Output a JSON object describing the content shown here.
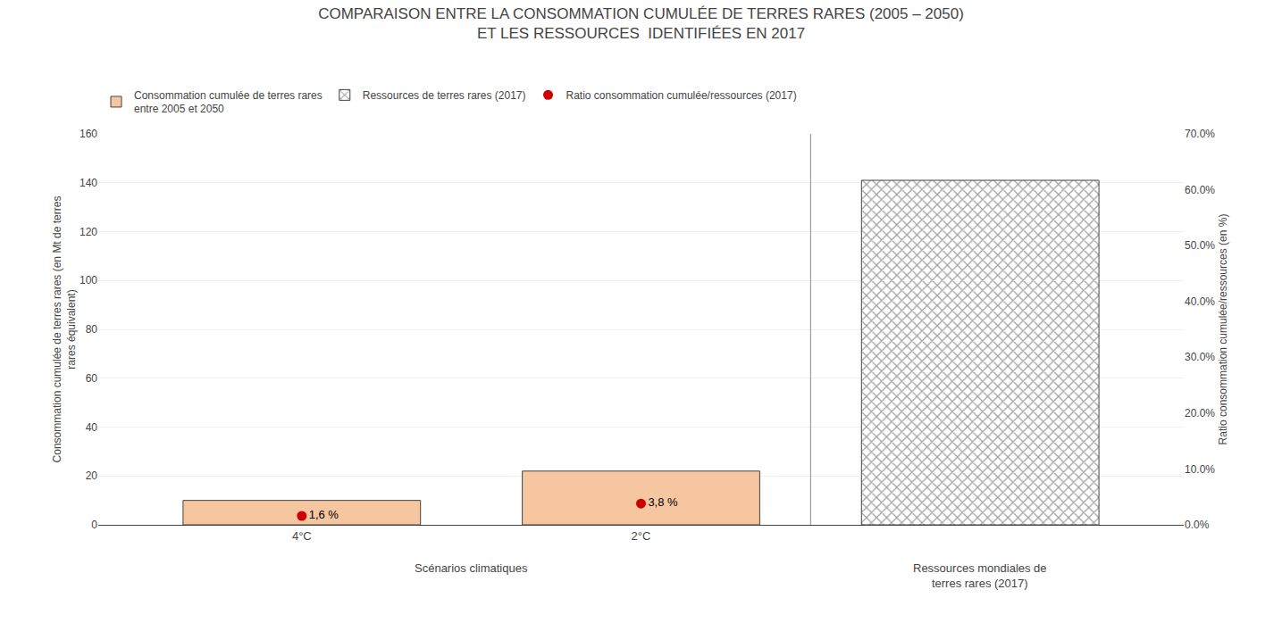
{
  "chart_data": {
    "type": "bar",
    "title": "COMPARAISON ENTRE LA CONSOMMATION CUMULÉE DE TERRES RARES (2005 – 2050)\nET LES RESSOURCES  IDENTIFIÉES EN 2017",
    "categories": [
      "4°C",
      "2°C",
      null
    ],
    "series": [
      {
        "name": "Consommation cumulée de terres rares\nentre 2005 et 2050",
        "type": "bar",
        "color": "#F5C6A0",
        "values": [
          10,
          22,
          null
        ]
      },
      {
        "name": "Ressources de terres rares (2017)",
        "type": "bar",
        "color": "#FFFFFF",
        "marker": "hatch",
        "values": [
          null,
          null,
          141
        ]
      },
      {
        "name": "Ratio consommation cumulée/ressources (2017)",
        "type": "scatter",
        "color": "#CC0000",
        "marker": "circle",
        "axis": "y2",
        "values": [
          1.6,
          3.8,
          null
        ],
        "value_labels": [
          "1,6 %",
          "3,8 %",
          null
        ],
        "data_labels": true
      }
    ],
    "ylabel": "Consommation cumulée de terres rares (en Mt de terres\nrares équivalent)",
    "y2label": "Ratio consommation cumulée/ressources (en %)",
    "ylim": [
      0,
      160
    ],
    "yticks": [
      0,
      20,
      40,
      60,
      80,
      100,
      120,
      140,
      160
    ],
    "y2lim": [
      0,
      70
    ],
    "y2ticks": [
      {
        "value": 0,
        "label": "0.0%"
      },
      {
        "value": 10,
        "label": "10.0%"
      },
      {
        "value": 20,
        "label": "20.0%"
      },
      {
        "value": 30,
        "label": "30.0%"
      },
      {
        "value": 40,
        "label": "40.0%"
      },
      {
        "value": 50,
        "label": "50.0%"
      },
      {
        "value": 60,
        "label": "60.0%"
      },
      {
        "value": 70,
        "label": "70.0%"
      }
    ],
    "grid": true,
    "legend": "upper left",
    "annotations": [
      "Scénarios climatiques",
      "Ressources mondiales de\nterres rares (2017)"
    ]
  }
}
